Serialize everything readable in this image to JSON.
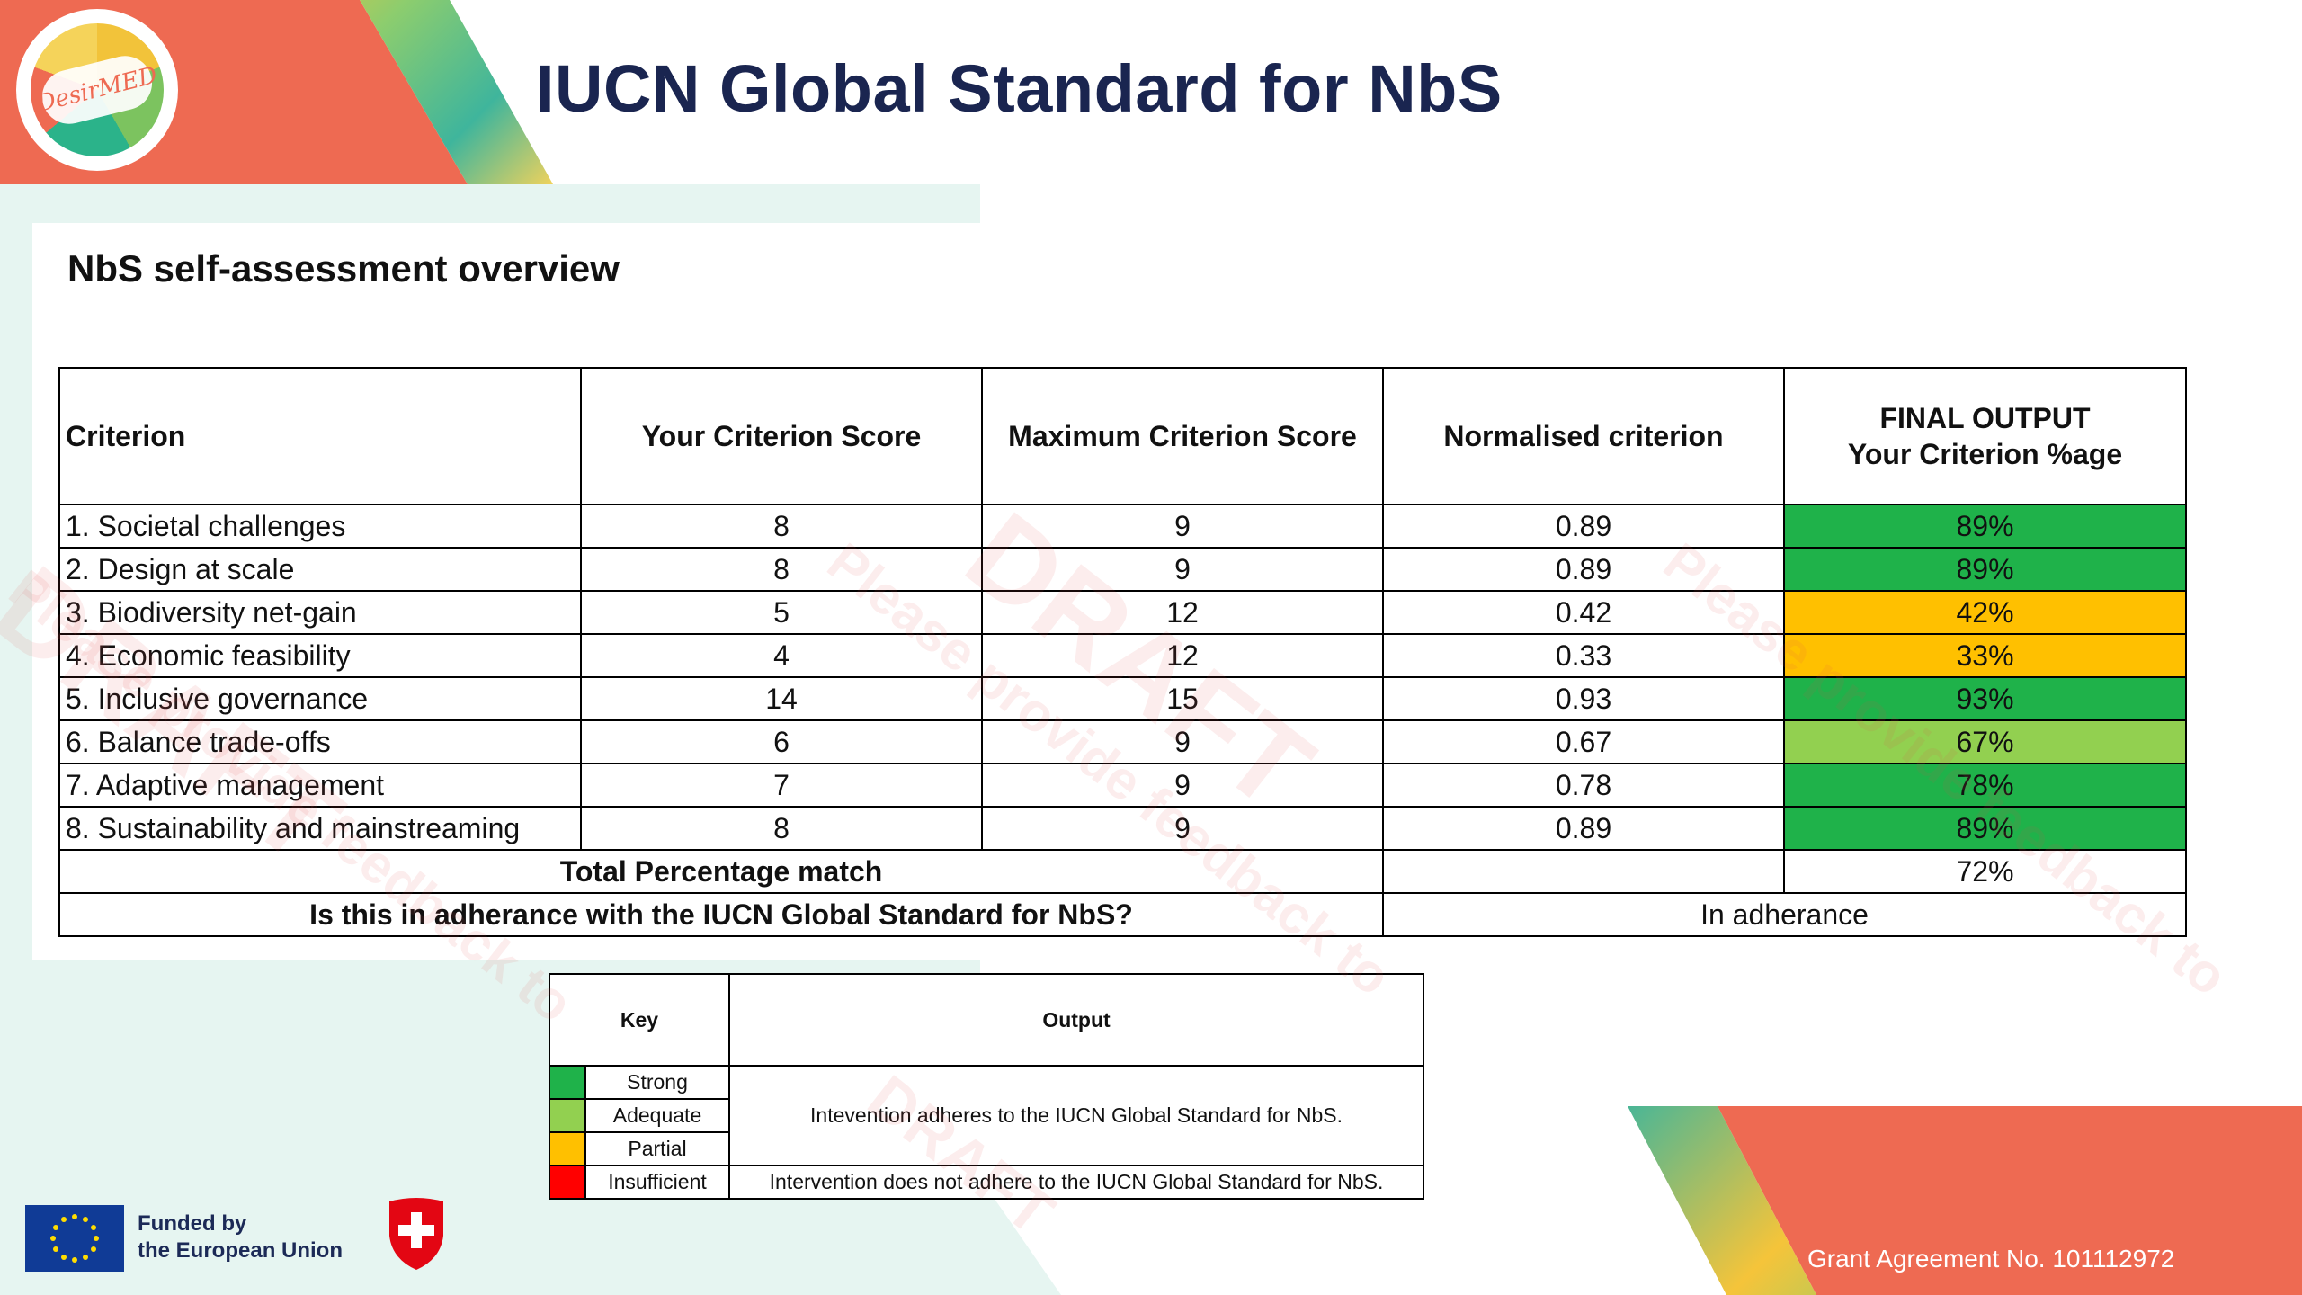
{
  "header": {
    "title": "IUCN Global Standard for NbS",
    "logo_text": "DesirMED"
  },
  "section": {
    "title": "NbS self-assessment overview"
  },
  "table": {
    "columns": [
      "Criterion",
      "Your Criterion Score",
      "Maximum Criterion Score",
      "Normalised criterion",
      "FINAL OUTPUT",
      "Your Criterion %age"
    ],
    "rows": [
      {
        "criterion": "1. Societal challenges",
        "score": "8",
        "max": "9",
        "normalised": "0.89",
        "pct": "89%",
        "color": "#1fb24a"
      },
      {
        "criterion": "2. Design at scale",
        "score": "8",
        "max": "9",
        "normalised": "0.89",
        "pct": "89%",
        "color": "#1fb24a"
      },
      {
        "criterion": "3. Biodiversity net-gain",
        "score": "5",
        "max": "12",
        "normalised": "0.42",
        "pct": "42%",
        "color": "#ffc000"
      },
      {
        "criterion": "4. Economic feasibility",
        "score": "4",
        "max": "12",
        "normalised": "0.33",
        "pct": "33%",
        "color": "#ffc000"
      },
      {
        "criterion": "5. Inclusive governance",
        "score": "14",
        "max": "15",
        "normalised": "0.93",
        "pct": "93%",
        "color": "#1fb24a"
      },
      {
        "criterion": "6. Balance trade-offs",
        "score": "6",
        "max": "9",
        "normalised": "0.67",
        "pct": "67%",
        "color": "#92d050"
      },
      {
        "criterion": "7. Adaptive management",
        "score": "7",
        "max": "9",
        "normalised": "0.78",
        "pct": "78%",
        "color": "#1fb24a"
      },
      {
        "criterion": "8. Sustainability and mainstreaming",
        "score": "8",
        "max": "9",
        "normalised": "0.89",
        "pct": "89%",
        "color": "#1fb24a"
      }
    ],
    "total_label": "Total Percentage match",
    "total_value": "72%",
    "adherence_question": "Is this in adherance with the IUCN Global Standard for NbS?",
    "adherence_answer": "In adherance"
  },
  "key": {
    "header_key": "Key",
    "header_output": "Output",
    "levels": [
      {
        "label": "Strong",
        "color": "#1fb24a"
      },
      {
        "label": "Adequate",
        "color": "#92d050"
      },
      {
        "label": "Partial",
        "color": "#ffc000"
      },
      {
        "label": "Insufficient",
        "color": "#ff0000"
      }
    ],
    "output_adheres": "Intevention adheres to the IUCN Global Standard for NbS.",
    "output_not": "Intervention does not adhere to the IUCN Global Standard for NbS."
  },
  "footer": {
    "funded_line1": "Funded by",
    "funded_line2": "the European Union",
    "grant": "Grant Agreement No. 101112972"
  },
  "watermark": {
    "draft": "DRAFT",
    "feedback": "Please provide feedback to"
  }
}
